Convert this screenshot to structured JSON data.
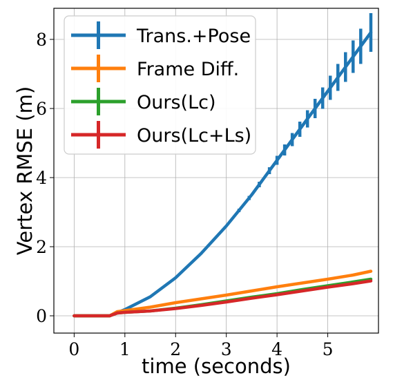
{
  "chart_data": {
    "type": "line",
    "xlabel": "time (seconds)",
    "ylabel": "Vertex RMSE (m)",
    "xlim": [
      -0.4,
      6.0
    ],
    "ylim": [
      -0.5,
      8.9
    ],
    "xticks": [
      0,
      1,
      2,
      3,
      4,
      5
    ],
    "yticks": [
      0,
      2,
      4,
      6,
      8
    ],
    "grid": true,
    "legend_position": "top-left",
    "series": [
      {
        "name": "Trans.+Pose",
        "color": "#1f77b4",
        "x": [
          0,
          0.7,
          1.0,
          1.5,
          2.0,
          2.5,
          3.0,
          3.5,
          4.0,
          4.5,
          5.0,
          5.5,
          5.85
        ],
        "y": [
          0,
          0,
          0.18,
          0.55,
          1.1,
          1.8,
          2.6,
          3.5,
          4.5,
          5.5,
          6.5,
          7.5,
          8.2
        ],
        "errorbars": [
          {
            "x": 3.25,
            "err": 0.05
          },
          {
            "x": 3.45,
            "err": 0.06
          },
          {
            "x": 3.65,
            "err": 0.08
          },
          {
            "x": 3.85,
            "err": 0.1
          },
          {
            "x": 4.0,
            "err": 0.13
          },
          {
            "x": 4.15,
            "err": 0.16
          },
          {
            "x": 4.3,
            "err": 0.19
          },
          {
            "x": 4.45,
            "err": 0.22
          },
          {
            "x": 4.6,
            "err": 0.25
          },
          {
            "x": 4.75,
            "err": 0.28
          },
          {
            "x": 4.9,
            "err": 0.31
          },
          {
            "x": 5.05,
            "err": 0.35
          },
          {
            "x": 5.2,
            "err": 0.39
          },
          {
            "x": 5.35,
            "err": 0.43
          },
          {
            "x": 5.5,
            "err": 0.47
          },
          {
            "x": 5.65,
            "err": 0.51
          },
          {
            "x": 5.85,
            "err": 0.56
          }
        ]
      },
      {
        "name": "Frame Diff.",
        "color": "#ff7f0e",
        "x": [
          0,
          0.7,
          0.85,
          1.0,
          1.5,
          2.0,
          2.5,
          3.0,
          3.5,
          4.0,
          4.5,
          5.0,
          5.5,
          5.85
        ],
        "y": [
          0,
          0,
          0.12,
          0.15,
          0.25,
          0.38,
          0.49,
          0.6,
          0.72,
          0.84,
          0.95,
          1.06,
          1.18,
          1.29
        ]
      },
      {
        "name": "Ours(Lc)",
        "color": "#2ca02c",
        "x": [
          0,
          0.7,
          0.85,
          1.0,
          1.5,
          2.0,
          2.5,
          3.0,
          3.5,
          4.0,
          4.5,
          5.0,
          5.5,
          5.85
        ],
        "y": [
          0,
          0,
          0.08,
          0.1,
          0.14,
          0.22,
          0.32,
          0.43,
          0.54,
          0.64,
          0.76,
          0.87,
          0.98,
          1.06
        ]
      },
      {
        "name": "Ours(Lc+Ls)",
        "color": "#d62728",
        "x": [
          0,
          0.7,
          0.85,
          1.0,
          1.5,
          2.0,
          2.5,
          3.0,
          3.5,
          4.0,
          4.5,
          5.0,
          5.5,
          5.85
        ],
        "y": [
          0,
          0,
          0.08,
          0.1,
          0.14,
          0.21,
          0.3,
          0.4,
          0.51,
          0.61,
          0.72,
          0.83,
          0.93,
          1.01
        ]
      }
    ]
  }
}
